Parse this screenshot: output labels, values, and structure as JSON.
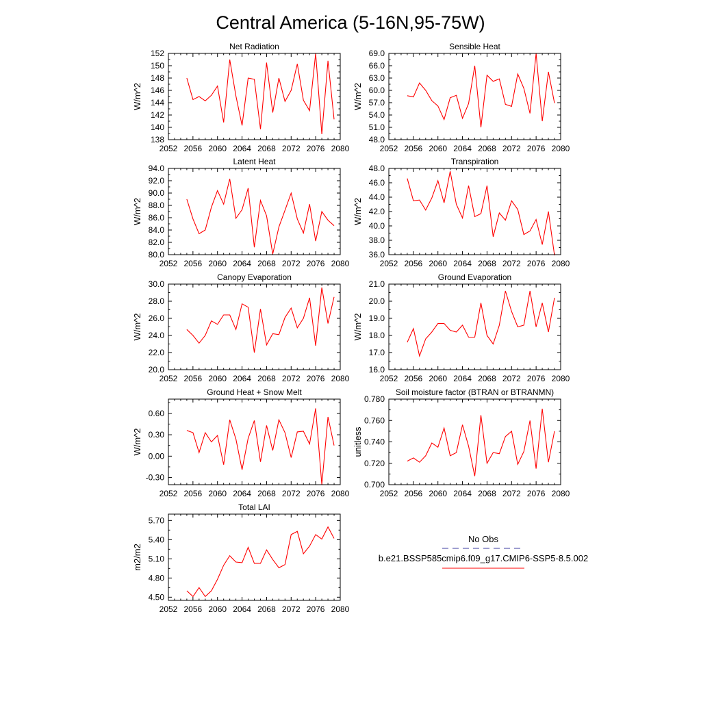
{
  "figure": {
    "title": "Central America (5-16N,95-75W)",
    "legend": {
      "entries": [
        {
          "label": "No Obs",
          "color": "#3c3ca0",
          "dash": "dashed"
        },
        {
          "label": "b.e21.BSSP585cmip6.f09_g17.CMIP6-SSP5-8.5.002",
          "color": "#ff0000",
          "dash": "solid"
        }
      ]
    }
  },
  "chart_data": [
    {
      "type": "line",
      "title": "Net Radiation",
      "ylabel": "W/m^2",
      "xlim": [
        2052,
        2080
      ],
      "xticks": [
        2052,
        2056,
        2060,
        2064,
        2068,
        2072,
        2076,
        2080
      ],
      "ylim": [
        138,
        152
      ],
      "yticks": [
        "138",
        "140",
        "142",
        "144",
        "146",
        "148",
        "150",
        "152"
      ],
      "x": [
        2055,
        2056,
        2057,
        2058,
        2059,
        2060,
        2061,
        2062,
        2063,
        2064,
        2065,
        2066,
        2067,
        2068,
        2069,
        2070,
        2071,
        2072,
        2073,
        2074,
        2075,
        2076,
        2077,
        2078,
        2079
      ],
      "series": [
        {
          "values": [
            148.0,
            144.5,
            145.0,
            144.3,
            145.2,
            146.7,
            140.8,
            151.0,
            145.1,
            140.3,
            148.0,
            147.8,
            139.7,
            150.5,
            142.4,
            148.0,
            144.2,
            146.0,
            150.3,
            144.4,
            142.7,
            152.0,
            138.9,
            150.8,
            141.3
          ]
        }
      ],
      "color": "#ff0000"
    },
    {
      "type": "line",
      "title": "Sensible Heat",
      "ylabel": "W/m^2",
      "xlim": [
        2052,
        2080
      ],
      "xticks": [
        2052,
        2056,
        2060,
        2064,
        2068,
        2072,
        2076,
        2080
      ],
      "ylim": [
        48,
        69
      ],
      "yticks": [
        "48.0",
        "51.0",
        "54.0",
        "57.0",
        "60.0",
        "63.0",
        "66.0",
        "69.0"
      ],
      "x": [
        2055,
        2056,
        2057,
        2058,
        2059,
        2060,
        2061,
        2062,
        2063,
        2064,
        2065,
        2066,
        2067,
        2068,
        2069,
        2070,
        2071,
        2072,
        2073,
        2074,
        2075,
        2076,
        2077,
        2078,
        2079
      ],
      "series": [
        {
          "values": [
            58.7,
            58.4,
            61.8,
            60.0,
            57.5,
            56.2,
            52.9,
            58.2,
            58.8,
            53.2,
            56.8,
            66.0,
            51.0,
            63.7,
            62.2,
            62.8,
            56.6,
            56.1,
            64.0,
            60.5,
            54.4,
            69.0,
            52.5,
            64.5,
            56.9
          ]
        }
      ],
      "color": "#ff0000"
    },
    {
      "type": "line",
      "title": "Latent Heat",
      "ylabel": "W/m^2",
      "xlim": [
        2052,
        2080
      ],
      "xticks": [
        2052,
        2056,
        2060,
        2064,
        2068,
        2072,
        2076,
        2080
      ],
      "ylim": [
        80,
        94
      ],
      "yticks": [
        "80.0",
        "82.0",
        "84.0",
        "86.0",
        "88.0",
        "90.0",
        "92.0",
        "94.0"
      ],
      "x": [
        2055,
        2056,
        2057,
        2058,
        2059,
        2060,
        2061,
        2062,
        2063,
        2064,
        2065,
        2066,
        2067,
        2068,
        2069,
        2070,
        2071,
        2072,
        2073,
        2074,
        2075,
        2076,
        2077,
        2078,
        2079
      ],
      "series": [
        {
          "values": [
            89.0,
            85.8,
            83.4,
            84.0,
            87.7,
            90.4,
            88.2,
            92.3,
            85.9,
            87.3,
            90.8,
            81.2,
            88.8,
            86.3,
            80.1,
            84.5,
            87.2,
            90.0,
            85.8,
            83.5,
            88.2,
            82.2,
            87.0,
            85.6,
            84.7
          ]
        }
      ],
      "color": "#ff0000"
    },
    {
      "type": "line",
      "title": "Transpiration",
      "ylabel": "W/m^2",
      "xlim": [
        2052,
        2080
      ],
      "xticks": [
        2052,
        2056,
        2060,
        2064,
        2068,
        2072,
        2076,
        2080
      ],
      "ylim": [
        36,
        48
      ],
      "yticks": [
        "36.0",
        "38.0",
        "40.0",
        "42.0",
        "44.0",
        "46.0",
        "48.0"
      ],
      "x": [
        2055,
        2056,
        2057,
        2058,
        2059,
        2060,
        2061,
        2062,
        2063,
        2064,
        2065,
        2066,
        2067,
        2068,
        2069,
        2070,
        2071,
        2072,
        2073,
        2074,
        2075,
        2076,
        2077,
        2078,
        2079
      ],
      "series": [
        {
          "values": [
            46.6,
            43.5,
            43.6,
            42.2,
            43.9,
            46.3,
            43.2,
            47.6,
            43.0,
            41.1,
            45.6,
            41.3,
            41.7,
            45.6,
            38.5,
            41.8,
            40.8,
            43.5,
            42.3,
            38.8,
            39.3,
            40.9,
            37.4,
            42.0,
            35.9
          ]
        }
      ],
      "color": "#ff0000"
    },
    {
      "type": "line",
      "title": "Canopy Evaporation",
      "ylabel": "W/m^2",
      "xlim": [
        2052,
        2080
      ],
      "xticks": [
        2052,
        2056,
        2060,
        2064,
        2068,
        2072,
        2076,
        2080
      ],
      "ylim": [
        20,
        30
      ],
      "yticks": [
        "20.0",
        "22.0",
        "24.0",
        "26.0",
        "28.0",
        "30.0"
      ],
      "x": [
        2055,
        2056,
        2057,
        2058,
        2059,
        2060,
        2061,
        2062,
        2063,
        2064,
        2065,
        2066,
        2067,
        2068,
        2069,
        2070,
        2071,
        2072,
        2073,
        2074,
        2075,
        2076,
        2077,
        2078,
        2079
      ],
      "series": [
        {
          "values": [
            24.7,
            24.0,
            23.1,
            24.0,
            25.7,
            25.3,
            26.4,
            26.4,
            24.7,
            27.7,
            27.3,
            22.0,
            27.1,
            22.9,
            24.2,
            24.1,
            26.1,
            27.2,
            24.9,
            26.0,
            28.4,
            22.8,
            29.6,
            25.4,
            28.5
          ]
        }
      ],
      "color": "#ff0000"
    },
    {
      "type": "line",
      "title": "Ground Evaporation",
      "ylabel": "W/m^2",
      "xlim": [
        2052,
        2080
      ],
      "xticks": [
        2052,
        2056,
        2060,
        2064,
        2068,
        2072,
        2076,
        2080
      ],
      "ylim": [
        16,
        21
      ],
      "yticks": [
        "16.0",
        "17.0",
        "18.0",
        "19.0",
        "20.0",
        "21.0"
      ],
      "x": [
        2055,
        2056,
        2057,
        2058,
        2059,
        2060,
        2061,
        2062,
        2063,
        2064,
        2065,
        2066,
        2067,
        2068,
        2069,
        2070,
        2071,
        2072,
        2073,
        2074,
        2075,
        2076,
        2077,
        2078,
        2079
      ],
      "series": [
        {
          "values": [
            17.6,
            18.4,
            16.8,
            17.8,
            18.2,
            18.7,
            18.7,
            18.3,
            18.2,
            18.6,
            17.9,
            17.9,
            19.9,
            18.0,
            17.5,
            18.6,
            20.6,
            19.4,
            18.5,
            18.6,
            20.6,
            18.5,
            19.9,
            18.2,
            20.2
          ]
        }
      ],
      "color": "#ff0000"
    },
    {
      "type": "line",
      "title": "Ground Heat + Snow Melt",
      "ylabel": "W/m^2",
      "xlim": [
        2052,
        2080
      ],
      "xticks": [
        2052,
        2056,
        2060,
        2064,
        2068,
        2072,
        2076,
        2080
      ],
      "ylim": [
        -0.4,
        0.8
      ],
      "yticks": [
        "-0.30",
        "0.00",
        "0.30",
        "0.60"
      ],
      "x": [
        2055,
        2056,
        2057,
        2058,
        2059,
        2060,
        2061,
        2062,
        2063,
        2064,
        2065,
        2066,
        2067,
        2068,
        2069,
        2070,
        2071,
        2072,
        2073,
        2074,
        2075,
        2076,
        2077,
        2078,
        2079
      ],
      "series": [
        {
          "values": [
            0.36,
            0.33,
            0.05,
            0.33,
            0.2,
            0.29,
            -0.12,
            0.51,
            0.24,
            -0.19,
            0.25,
            0.5,
            -0.08,
            0.43,
            0.08,
            0.51,
            0.33,
            -0.02,
            0.34,
            0.35,
            0.17,
            0.67,
            -0.4,
            0.55,
            0.15
          ]
        }
      ],
      "color": "#ff0000"
    },
    {
      "type": "line",
      "title": "Soil moisture factor (BTRAN or BTRANMN)",
      "ylabel": "unitless",
      "xlim": [
        2052,
        2080
      ],
      "xticks": [
        2052,
        2056,
        2060,
        2064,
        2068,
        2072,
        2076,
        2080
      ],
      "ylim": [
        0.7,
        0.78
      ],
      "yticks": [
        "0.700",
        "0.720",
        "0.740",
        "0.760",
        "0.780"
      ],
      "x": [
        2055,
        2056,
        2057,
        2058,
        2059,
        2060,
        2061,
        2062,
        2063,
        2064,
        2065,
        2066,
        2067,
        2068,
        2069,
        2070,
        2071,
        2072,
        2073,
        2074,
        2075,
        2076,
        2077,
        2078,
        2079
      ],
      "series": [
        {
          "values": [
            0.722,
            0.725,
            0.721,
            0.727,
            0.739,
            0.735,
            0.753,
            0.727,
            0.73,
            0.756,
            0.736,
            0.708,
            0.765,
            0.72,
            0.73,
            0.729,
            0.745,
            0.75,
            0.719,
            0.731,
            0.76,
            0.715,
            0.771,
            0.721,
            0.75
          ]
        }
      ],
      "color": "#ff0000"
    },
    {
      "type": "line",
      "title": "Total LAI",
      "ylabel": "m2/m2",
      "xlim": [
        2052,
        2080
      ],
      "xticks": [
        2052,
        2056,
        2060,
        2064,
        2068,
        2072,
        2076,
        2080
      ],
      "ylim": [
        4.45,
        5.8
      ],
      "yticks": [
        "4.50",
        "4.80",
        "5.10",
        "5.40",
        "5.70"
      ],
      "x": [
        2055,
        2056,
        2057,
        2058,
        2059,
        2060,
        2061,
        2062,
        2063,
        2064,
        2065,
        2066,
        2067,
        2068,
        2069,
        2070,
        2071,
        2072,
        2073,
        2074,
        2075,
        2076,
        2077,
        2078,
        2079
      ],
      "series": [
        {
          "values": [
            4.6,
            4.51,
            4.65,
            4.51,
            4.6,
            4.78,
            5.0,
            5.15,
            5.05,
            5.04,
            5.28,
            5.03,
            5.03,
            5.24,
            5.09,
            4.96,
            5.01,
            5.48,
            5.53,
            5.18,
            5.3,
            5.48,
            5.41,
            5.6,
            5.42
          ]
        }
      ],
      "color": "#ff0000"
    }
  ]
}
